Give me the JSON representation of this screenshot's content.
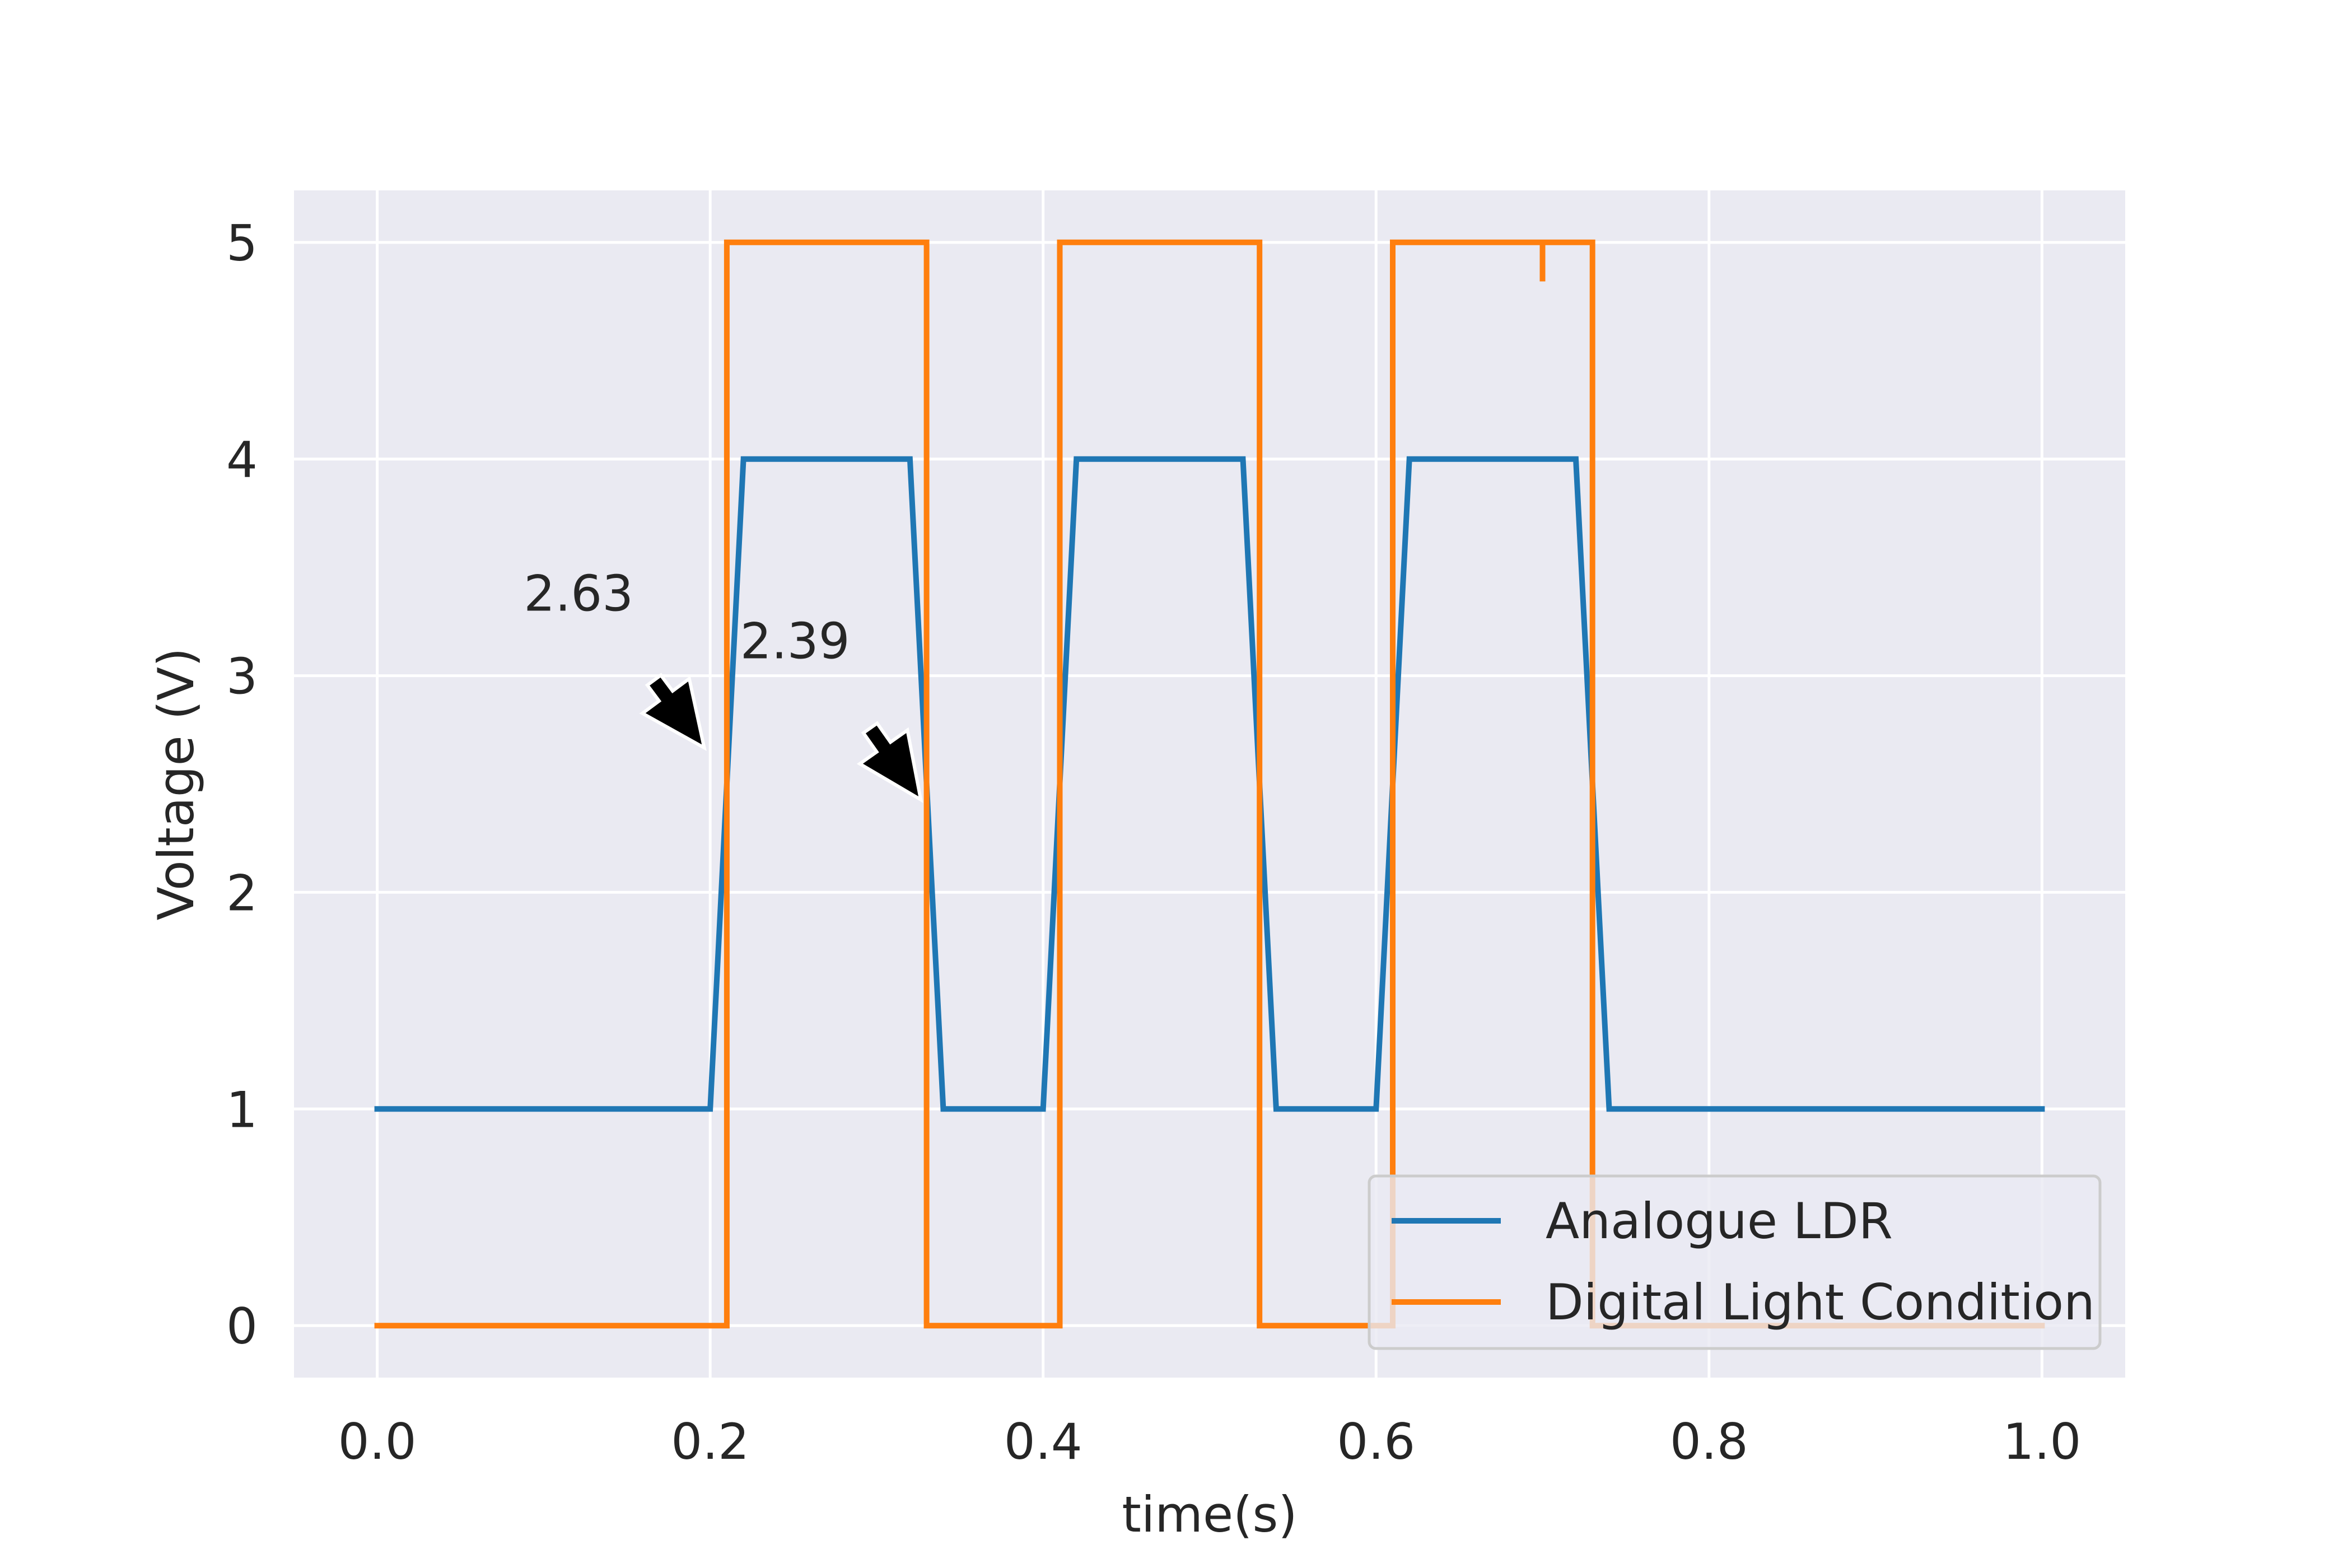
{
  "chart_data": {
    "type": "line",
    "title": "",
    "xlabel": "time(s)",
    "ylabel": "Voltage (V)",
    "xlim": [
      -0.05,
      1.05
    ],
    "ylim": [
      -0.24,
      5.24
    ],
    "xticks": [
      0.0,
      0.2,
      0.4,
      0.6,
      0.8,
      1.0
    ],
    "xtick_labels": [
      "0.0",
      "0.2",
      "0.4",
      "0.6",
      "0.8",
      "1.0"
    ],
    "yticks": [
      0,
      1,
      2,
      3,
      4,
      5
    ],
    "ytick_labels": [
      "0",
      "1",
      "2",
      "3",
      "4",
      "5"
    ],
    "grid": true,
    "legend_position": "lower-right",
    "series": [
      {
        "name": "Analogue LDR",
        "color": "#1f77b4",
        "x": [
          0.0,
          0.2,
          0.22,
          0.32,
          0.34,
          0.4,
          0.42,
          0.52,
          0.54,
          0.6,
          0.62,
          0.72,
          0.74,
          1.0
        ],
        "y": [
          1,
          1,
          4,
          4,
          1,
          1,
          4,
          4,
          1,
          1,
          4,
          4,
          1,
          1
        ]
      },
      {
        "name": "Digital Light Condition",
        "color": "#ff7f0e",
        "x": [
          0.0,
          0.21,
          0.21,
          0.33,
          0.33,
          0.41,
          0.41,
          0.53,
          0.53,
          0.61,
          0.61,
          0.7,
          0.7,
          0.7,
          0.73,
          0.73,
          1.0
        ],
        "y": [
          0,
          0,
          5,
          5,
          0,
          0,
          5,
          5,
          0,
          0,
          5,
          5,
          4.82,
          5,
          5,
          0,
          0
        ]
      }
    ],
    "annotations": [
      {
        "text": "2.63",
        "text_x": 0.088,
        "text_y": 3.3,
        "point_x": 0.2,
        "point_y": 2.63
      },
      {
        "text": "2.39",
        "text_x": 0.218,
        "text_y": 3.08,
        "point_x": 0.33,
        "point_y": 2.39
      }
    ]
  }
}
